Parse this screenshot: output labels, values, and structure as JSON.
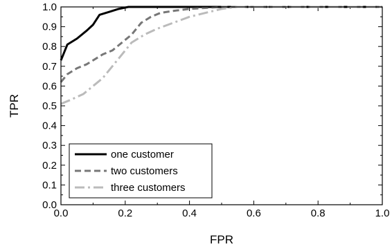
{
  "chart_data": {
    "type": "line",
    "title": "",
    "xlabel": "FPR",
    "ylabel": "TPR",
    "xlim": [
      0.0,
      1.0
    ],
    "ylim": [
      0.0,
      1.0
    ],
    "x_ticks": [
      "0.0",
      "0.2",
      "0.4",
      "0.6",
      "0.8",
      "1.0"
    ],
    "y_ticks": [
      "0.0",
      "0.1",
      "0.2",
      "0.3",
      "0.4",
      "0.5",
      "0.6",
      "0.7",
      "0.8",
      "0.9",
      "1.0"
    ],
    "grid": false,
    "legend_position": "bottom-left",
    "series": [
      {
        "name": "one customer",
        "color": "#000000",
        "style": "solid",
        "points": [
          [
            0.0,
            0.73
          ],
          [
            0.02,
            0.81
          ],
          [
            0.05,
            0.84
          ],
          [
            0.08,
            0.88
          ],
          [
            0.1,
            0.91
          ],
          [
            0.12,
            0.96
          ],
          [
            0.15,
            0.975
          ],
          [
            0.18,
            0.99
          ],
          [
            0.21,
            1.0
          ],
          [
            0.3,
            1.0
          ],
          [
            0.5,
            1.0
          ],
          [
            0.7,
            1.0
          ],
          [
            1.0,
            1.0
          ]
        ]
      },
      {
        "name": "two customers",
        "color": "#777777",
        "style": "dashed",
        "points": [
          [
            0.0,
            0.62
          ],
          [
            0.02,
            0.66
          ],
          [
            0.05,
            0.69
          ],
          [
            0.08,
            0.71
          ],
          [
            0.1,
            0.73
          ],
          [
            0.13,
            0.76
          ],
          [
            0.16,
            0.78
          ],
          [
            0.19,
            0.82
          ],
          [
            0.22,
            0.86
          ],
          [
            0.25,
            0.92
          ],
          [
            0.28,
            0.95
          ],
          [
            0.31,
            0.97
          ],
          [
            0.35,
            0.98
          ],
          [
            0.4,
            0.99
          ],
          [
            0.5,
            1.0
          ],
          [
            0.7,
            1.0
          ],
          [
            1.0,
            1.0
          ]
        ]
      },
      {
        "name": "three customers",
        "color": "#bbbbbb",
        "style": "dash-dot",
        "points": [
          [
            0.0,
            0.51
          ],
          [
            0.03,
            0.53
          ],
          [
            0.07,
            0.56
          ],
          [
            0.1,
            0.6
          ],
          [
            0.13,
            0.64
          ],
          [
            0.16,
            0.7
          ],
          [
            0.19,
            0.76
          ],
          [
            0.22,
            0.82
          ],
          [
            0.26,
            0.86
          ],
          [
            0.3,
            0.89
          ],
          [
            0.35,
            0.92
          ],
          [
            0.4,
            0.95
          ],
          [
            0.45,
            0.97
          ],
          [
            0.5,
            0.99
          ],
          [
            0.55,
            1.0
          ],
          [
            0.7,
            1.0
          ],
          [
            1.0,
            1.0
          ]
        ]
      }
    ]
  }
}
